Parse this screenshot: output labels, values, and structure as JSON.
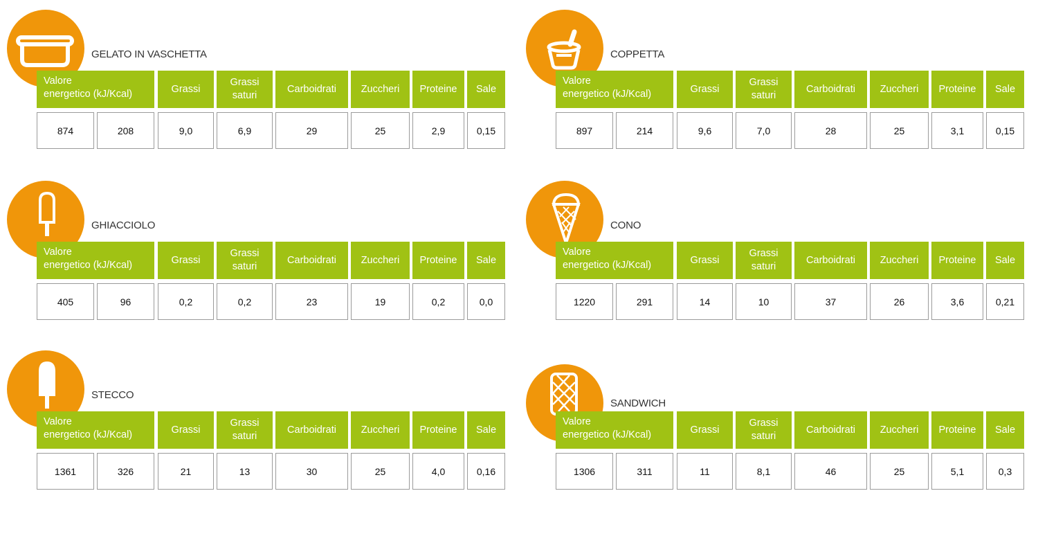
{
  "headers": {
    "energy_line1": "Valore",
    "energy_line2": "energetico (kJ/Kcal)",
    "fat": "Grassi",
    "sat_line1": "Grassi",
    "sat_line2": "saturi",
    "carbs": "Carboidrati",
    "sugars": "Zuccheri",
    "protein": "Proteine",
    "salt": "Sale"
  },
  "colors": {
    "accent_orange": "#f0960a",
    "header_green": "#a0c214"
  },
  "products": [
    {
      "name": "GELATO IN VASCHETTA",
      "icon": "tub-icon",
      "values": [
        "874",
        "208",
        "9,0",
        "6,9",
        "29",
        "25",
        "2,9",
        "0,15"
      ]
    },
    {
      "name": "COPPETTA",
      "icon": "cup-icon",
      "values": [
        "897",
        "214",
        "9,6",
        "7,0",
        "28",
        "25",
        "3,1",
        "0,15"
      ]
    },
    {
      "name": "GHIACCIOLO",
      "icon": "popsicle-icon",
      "values": [
        "405",
        "96",
        "0,2",
        "0,2",
        "23",
        "19",
        "0,2",
        "0,0"
      ]
    },
    {
      "name": "CONO",
      "icon": "cone-icon",
      "values": [
        "1220",
        "291",
        "14",
        "10",
        "37",
        "26",
        "3,6",
        "0,21"
      ]
    },
    {
      "name": "STECCO",
      "icon": "stick-bar-icon",
      "values": [
        "1361",
        "326",
        "21",
        "13",
        "30",
        "25",
        "4,0",
        "0,16"
      ]
    },
    {
      "name": "SANDWICH",
      "icon": "sandwich-icon",
      "values": [
        "1306",
        "311",
        "11",
        "8,1",
        "46",
        "25",
        "5,1",
        "0,3"
      ]
    }
  ]
}
